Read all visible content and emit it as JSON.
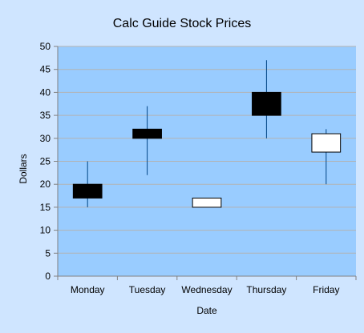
{
  "colors": {
    "background": "#cfe5ff",
    "plot_area": "#99ccff",
    "gridline": "#b3b3b3",
    "axis": "#808080",
    "wick": "#004586",
    "candle_up": "#ffffff",
    "candle_down": "#000000",
    "text": "#000000"
  },
  "chart_data": {
    "type": "candlestick",
    "title": "Calc Guide Stock Prices",
    "xlabel": "Date",
    "ylabel": "Dollars",
    "ylim": [
      0,
      50
    ],
    "ytick_step": 5,
    "yticks": [
      "0",
      "5",
      "10",
      "15",
      "20",
      "25",
      "30",
      "35",
      "40",
      "45",
      "50"
    ],
    "grid": true,
    "legend": "none",
    "categories": [
      "Monday",
      "Tuesday",
      "Wednesday",
      "Thursday",
      "Friday"
    ],
    "series": [
      {
        "open": [
          20,
          32,
          15,
          40,
          27
        ],
        "high": [
          25,
          37,
          17,
          47,
          32
        ],
        "low": [
          15,
          22,
          15,
          30,
          20
        ],
        "close": [
          17,
          30,
          17,
          35,
          31
        ]
      }
    ]
  }
}
